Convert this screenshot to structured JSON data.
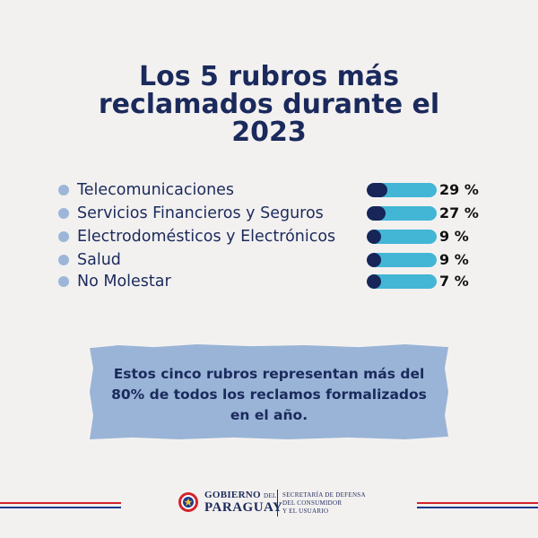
{
  "title": {
    "line1": "Los 5 rubros más",
    "line2": "reclamados durante el",
    "line3": "2023"
  },
  "chart_data": {
    "type": "bar",
    "title": "Los 5 rubros más reclamados durante el 2023",
    "categories": [
      "Telecomunicaciones",
      "Servicios Financieros y Seguros",
      "Electrodomésticos y Electrónicos",
      "Salud",
      "No Molestar"
    ],
    "values": [
      29,
      27,
      9,
      9,
      7
    ],
    "labels": [
      "29 %",
      "27 %",
      "9 %",
      "9 %",
      "7 %"
    ],
    "unit": "%",
    "xlim": [
      0,
      100
    ]
  },
  "note": {
    "line1": "Estos cinco rubros representan más del",
    "line2": "80% de todos los reclamos formalizados",
    "line3": "en el año."
  },
  "footer": {
    "gov_line1": "GOBIERNO",
    "gov_del": "DEL",
    "gov_line2": "PARAGUAY",
    "secretaria_line1": "SECRETARÍA DE DEFENSA",
    "secretaria_line2": "DEL CONSUMIDOR",
    "secretaria_line3": "Y EL USUARIO"
  },
  "colors": {
    "title": "#1b2a5c",
    "bullet": "#9db6d8",
    "bar_track": "#43b6d6",
    "bar_fill": "#172558",
    "note_bg": "#99b4d6",
    "stripe_red": "#d2232a",
    "stripe_blue": "#1b3a8c",
    "background": "#f3f1f0"
  },
  "icons": {
    "bullet": "circle-bullet-icon",
    "seal": "paraguay-seal-icon"
  }
}
